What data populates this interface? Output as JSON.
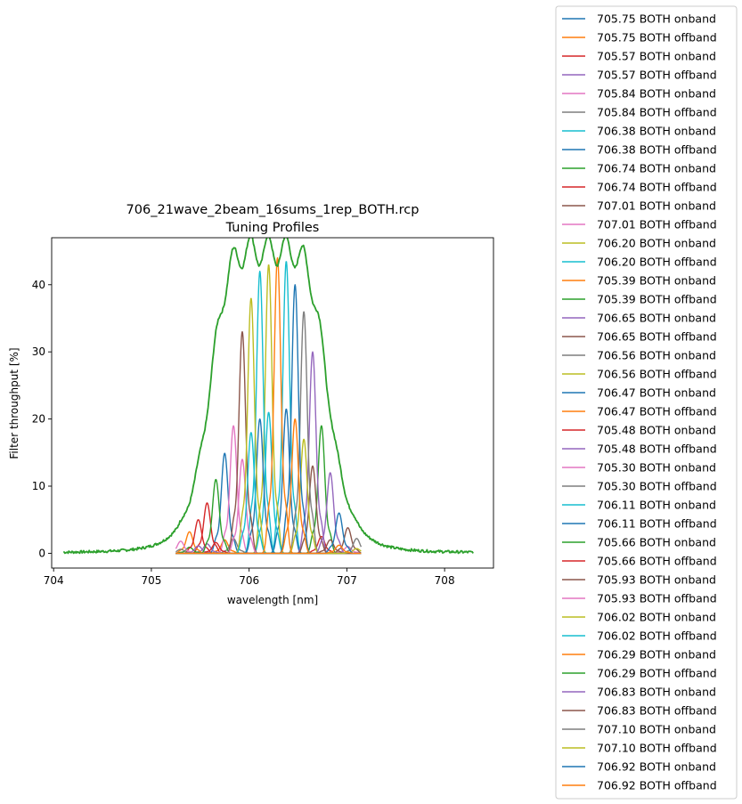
{
  "chart_data": {
    "type": "line",
    "title": "706_21wave_2beam_16sums_1rep_BOTH.rcp",
    "subtitle": "Tuning Profiles",
    "xlabel": "wavelength [nm]",
    "ylabel": "Filter throughput [%]",
    "xlim": [
      703.98,
      708.5
    ],
    "ylim": [
      -2.2,
      47.0
    ],
    "xticks": [
      704,
      705,
      706,
      707,
      708
    ],
    "yticks": [
      0,
      10,
      20,
      30,
      40
    ],
    "grid": false,
    "legend_position": "outside-right",
    "colors": [
      "#1f77b4",
      "#ff7f0e",
      "#d62728",
      "#9467bd",
      "#e377c2",
      "#7f7f7f",
      "#17becf",
      "#1f77b4",
      "#2ca02c",
      "#d62728",
      "#8c564b",
      "#e377c2",
      "#bcbd22",
      "#17becf",
      "#ff7f0e",
      "#2ca02c",
      "#9467bd",
      "#8c564b",
      "#7f7f7f",
      "#bcbd22",
      "#1f77b4",
      "#ff7f0e",
      "#d62728",
      "#9467bd",
      "#e377c2",
      "#7f7f7f",
      "#17becf",
      "#1f77b4",
      "#2ca02c",
      "#d62728",
      "#8c564b",
      "#e377c2",
      "#bcbd22",
      "#17becf",
      "#ff7f0e",
      "#2ca02c",
      "#9467bd",
      "#8c564b",
      "#7f7f7f",
      "#bcbd22",
      "#1f77b4",
      "#ff7f0e"
    ],
    "series": [
      {
        "name": "705.75 BOTH onband",
        "center": 705.75,
        "peak": 14.9
      },
      {
        "name": "705.75 BOTH offband",
        "center": 705.75,
        "peak": 2.0
      },
      {
        "name": "705.57 BOTH onband",
        "center": 705.57,
        "peak": 7.5
      },
      {
        "name": "705.57 BOTH offband",
        "center": 705.57,
        "peak": 1.4
      },
      {
        "name": "705.84 BOTH onband",
        "center": 705.84,
        "peak": 19.0
      },
      {
        "name": "705.84 BOTH offband",
        "center": 705.84,
        "peak": 2.2
      },
      {
        "name": "706.38 BOTH onband",
        "center": 706.38,
        "peak": 43.5
      },
      {
        "name": "706.38 BOTH offband",
        "center": 706.38,
        "peak": 21.5
      },
      {
        "name": "706.74 BOTH onband",
        "center": 706.74,
        "peak": 19.0
      },
      {
        "name": "706.74 BOTH offband",
        "center": 706.74,
        "peak": 2.5
      },
      {
        "name": "707.01 BOTH onband",
        "center": 707.01,
        "peak": 3.8
      },
      {
        "name": "707.01 BOTH offband",
        "center": 707.01,
        "peak": 1.0
      },
      {
        "name": "706.20 BOTH onband",
        "center": 706.2,
        "peak": 43.0
      },
      {
        "name": "706.20 BOTH offband",
        "center": 706.2,
        "peak": 21.0
      },
      {
        "name": "705.39 BOTH onband",
        "center": 705.39,
        "peak": 3.2
      },
      {
        "name": "705.39 BOTH offband",
        "center": 705.39,
        "peak": 0.9
      },
      {
        "name": "706.65 BOTH onband",
        "center": 706.65,
        "peak": 30.0
      },
      {
        "name": "706.65 BOTH offband",
        "center": 706.65,
        "peak": 13.0
      },
      {
        "name": "706.56 BOTH onband",
        "center": 706.56,
        "peak": 36.0
      },
      {
        "name": "706.56 BOTH offband",
        "center": 706.56,
        "peak": 17.0
      },
      {
        "name": "706.47 BOTH onband",
        "center": 706.47,
        "peak": 40.0
      },
      {
        "name": "706.47 BOTH offband",
        "center": 706.47,
        "peak": 20.0
      },
      {
        "name": "705.48 BOTH onband",
        "center": 705.48,
        "peak": 5.0
      },
      {
        "name": "705.48 BOTH offband",
        "center": 705.48,
        "peak": 1.1
      },
      {
        "name": "705.30 BOTH onband",
        "center": 705.3,
        "peak": 1.8
      },
      {
        "name": "705.30 BOTH offband",
        "center": 705.3,
        "peak": 0.6
      },
      {
        "name": "706.11 BOTH onband",
        "center": 706.11,
        "peak": 42.0
      },
      {
        "name": "706.11 BOTH offband",
        "center": 706.11,
        "peak": 20.0
      },
      {
        "name": "705.66 BOTH onband",
        "center": 705.66,
        "peak": 11.0
      },
      {
        "name": "705.66 BOTH offband",
        "center": 705.66,
        "peak": 1.6
      },
      {
        "name": "705.93 BOTH onband",
        "center": 705.93,
        "peak": 33.0
      },
      {
        "name": "705.93 BOTH offband",
        "center": 705.93,
        "peak": 14.0
      },
      {
        "name": "706.02 BOTH onband",
        "center": 706.02,
        "peak": 38.0
      },
      {
        "name": "706.02 BOTH offband",
        "center": 706.02,
        "peak": 18.0
      },
      {
        "name": "706.29 BOTH onband",
        "center": 706.29,
        "peak": 44.0
      },
      {
        "name": "706.29 BOTH offband",
        "center": 706.29,
        "peak": 22.0
      },
      {
        "name": "706.83 BOTH onband",
        "center": 706.83,
        "peak": 12.0
      },
      {
        "name": "706.83 BOTH offband",
        "center": 706.83,
        "peak": 2.0
      },
      {
        "name": "707.10 BOTH onband",
        "center": 707.1,
        "peak": 2.2
      },
      {
        "name": "707.10 BOTH offband",
        "center": 707.1,
        "peak": 0.7
      },
      {
        "name": "706.92 BOTH onband",
        "center": 706.92,
        "peak": 6.0
      },
      {
        "name": "706.92 BOTH offband",
        "center": 706.92,
        "peak": 1.2
      }
    ]
  }
}
